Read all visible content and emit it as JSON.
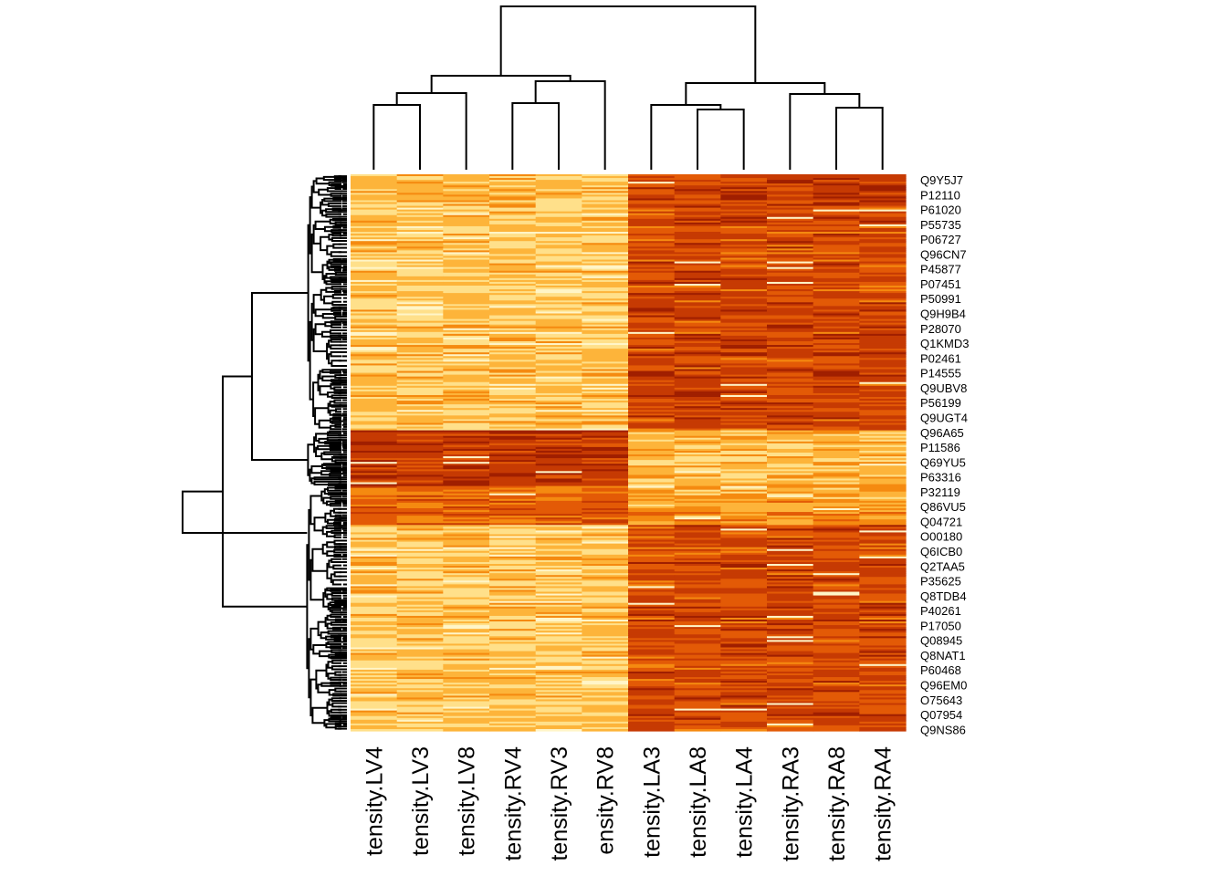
{
  "chart_data": {
    "type": "heatmap",
    "title": "",
    "xlabel": "",
    "ylabel": "",
    "columns": [
      "tensity.LV4",
      "tensity.LV3",
      "tensity.LV8",
      "tensity.RV4",
      "tensity.RV3",
      "ensity.RV8",
      "tensity.LA3",
      "tensity.LA8",
      "tensity.LA4",
      "tensity.RA3",
      "tensity.RA8",
      "tensity.RA4"
    ],
    "row_labels": [
      "Q9Y5J7",
      "P12110",
      "P61020",
      "P55735",
      "P06727",
      "Q96CN7",
      "P45877",
      "P07451",
      "P50991",
      "Q9H9B4",
      "P28070",
      "Q1KMD3",
      "P02461",
      "P14555",
      "Q9UBV8",
      "P56199",
      "Q9UGT4",
      "Q96A65",
      "P11586",
      "Q69YU5",
      "P63316",
      "P32119",
      "Q86VU5",
      "Q04721",
      "O00180",
      "Q6ICB0",
      "Q2TAA5",
      "P35625",
      "Q8TDB4",
      "P40261",
      "P17050",
      "Q08945",
      "Q8NAT1",
      "P60468",
      "Q96EM0",
      "O75643",
      "Q07954",
      "Q9NS86"
    ],
    "color_scale": [
      "#fff5c8",
      "#ffe08a",
      "#fdb43a",
      "#f58a10",
      "#e35a06",
      "#c63a03",
      "#a01f00"
    ],
    "row_blocks": [
      {
        "start_fraction": 0.0,
        "end_fraction": 0.46,
        "pattern": "ventricles-low-atria-high"
      },
      {
        "start_fraction": 0.46,
        "end_fraction": 0.56,
        "pattern": "ventricles-high-atria-low"
      },
      {
        "start_fraction": 0.56,
        "end_fraction": 0.63,
        "pattern": "mixed"
      },
      {
        "start_fraction": 0.63,
        "end_fraction": 1.0,
        "pattern": "ventricles-low-atria-high"
      }
    ],
    "column_dendrogram": {
      "merges": [
        [
          "tensity.LV4",
          "tensity.LV3"
        ],
        [
          "tensity.RV4",
          "tensity.RV3"
        ],
        [
          "LV4+LV3",
          "tensity.LV8"
        ],
        [
          "RV4+RV3",
          "ensity.RV8"
        ],
        [
          "LV",
          "RV"
        ],
        [
          "tensity.LA8",
          "tensity.LA4"
        ],
        [
          "tensity.RA8",
          "tensity.RA4"
        ],
        [
          "tensity.LA3",
          "LA8+LA4"
        ],
        [
          "tensity.RA3",
          "RA8+RA4"
        ],
        [
          "LA",
          "RA"
        ],
        [
          "ventricles",
          "atria"
        ]
      ]
    },
    "grid": false,
    "legend": "none"
  }
}
